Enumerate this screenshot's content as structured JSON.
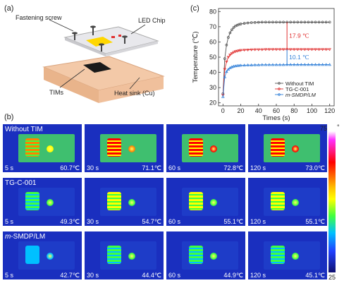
{
  "panel_a": {
    "label": "(a)",
    "annotations": {
      "screw": "Fastening screw",
      "chip": "LED Chip",
      "tims": "TIMs",
      "sink": "Heat sink (Cu)"
    }
  },
  "panel_b": {
    "label": "(b)",
    "colorbar": {
      "max": "75",
      "max_unit": "°",
      "min": "25"
    },
    "rows": [
      {
        "name": "Without TIM",
        "tiles": [
          {
            "time": "5 s",
            "temp": "60.7℃",
            "level": 0.72
          },
          {
            "time": "30 s",
            "temp": "71.1℃",
            "level": 0.92
          },
          {
            "time": "60 s",
            "temp": "72.8℃",
            "level": 0.95
          },
          {
            "time": "120 s",
            "temp": "73.0℃",
            "level": 0.96
          }
        ]
      },
      {
        "name": "TG-C-001",
        "tiles": [
          {
            "time": "5 s",
            "temp": "49.3℃",
            "level": 0.49
          },
          {
            "time": "30 s",
            "temp": "54.7℃",
            "level": 0.59
          },
          {
            "time": "60 s",
            "temp": "55.1℃",
            "level": 0.6
          },
          {
            "time": "120 s",
            "temp": "55.1℃",
            "level": 0.6
          }
        ]
      },
      {
        "name": "m-SMDP/LM",
        "name_italic": "m",
        "name_rest": "-SMDP/LM",
        "tiles": [
          {
            "time": "5 s",
            "temp": "42.7℃",
            "level": 0.35
          },
          {
            "time": "30 s",
            "temp": "44.4℃",
            "level": 0.39
          },
          {
            "time": "60 s",
            "temp": "44.9℃",
            "level": 0.4
          },
          {
            "time": "120 s",
            "temp": "45.1℃",
            "level": 0.4
          }
        ]
      }
    ]
  },
  "chart_data": {
    "panel_label": "(c)",
    "type": "line",
    "xlabel": "Times (s)",
    "ylabel": "Temperature (℃)",
    "xlim": [
      -5,
      125
    ],
    "ylim": [
      18,
      82
    ],
    "xticks": [
      0,
      20,
      40,
      60,
      80,
      100,
      120
    ],
    "yticks": [
      20,
      30,
      40,
      50,
      60,
      70,
      80
    ],
    "legend_position": "bottom-right",
    "series": [
      {
        "name": "Without TIM",
        "color": "#555555",
        "marker": "circle",
        "x": [
          0,
          2,
          4,
          6,
          8,
          10,
          12,
          14,
          16,
          18,
          20,
          24,
          28,
          32,
          36,
          40,
          44,
          48,
          52,
          56,
          60,
          64,
          68,
          72,
          76,
          80,
          84,
          88,
          92,
          96,
          100,
          104,
          108,
          112,
          116,
          120
        ],
        "y": [
          26,
          49,
          58,
          63,
          66,
          68,
          69.5,
          70.5,
          71,
          71.5,
          71.8,
          72.2,
          72.5,
          72.7,
          72.8,
          72.9,
          73,
          73,
          73,
          73,
          73,
          73,
          73,
          73,
          73,
          73,
          73,
          73,
          73,
          73,
          73,
          73,
          73,
          73,
          73,
          73
        ]
      },
      {
        "name": "TG-C-001",
        "color": "#e03030",
        "marker": "triangle-down",
        "x": [
          0,
          2,
          4,
          6,
          8,
          10,
          12,
          14,
          16,
          18,
          20,
          24,
          28,
          32,
          36,
          40,
          44,
          48,
          52,
          56,
          60,
          64,
          68,
          72,
          76,
          80,
          84,
          88,
          92,
          96,
          100,
          104,
          108,
          112,
          116,
          120
        ],
        "y": [
          25,
          42,
          47,
          50,
          51.5,
          52.5,
          53.2,
          53.7,
          54,
          54.3,
          54.5,
          54.7,
          54.8,
          54.9,
          55,
          55,
          55,
          55.1,
          55.1,
          55.1,
          55.1,
          55.1,
          55.1,
          55.1,
          55.1,
          55.1,
          55.1,
          55.1,
          55.1,
          55.1,
          55.1,
          55.1,
          55.1,
          55.1,
          55.1,
          55.1
        ]
      },
      {
        "name": "m-SMDP/LM",
        "color": "#2f7fd8",
        "marker": "triangle-up",
        "x": [
          0,
          2,
          4,
          6,
          8,
          10,
          12,
          14,
          16,
          18,
          20,
          24,
          28,
          32,
          36,
          40,
          44,
          48,
          52,
          56,
          60,
          64,
          68,
          72,
          76,
          80,
          84,
          88,
          92,
          96,
          100,
          104,
          108,
          112,
          116,
          120
        ],
        "y": [
          24,
          37,
          40.5,
          42,
          43,
          43.6,
          44,
          44.2,
          44.4,
          44.5,
          44.6,
          44.7,
          44.8,
          44.8,
          44.9,
          44.9,
          45,
          45,
          45,
          45,
          45,
          45,
          45,
          45.1,
          45.1,
          45.1,
          45.1,
          45.1,
          45.1,
          45.1,
          45.1,
          45.1,
          45.1,
          45.1,
          45.1,
          45.1
        ]
      }
    ],
    "annotations": [
      {
        "text": "17.9 ℃",
        "color": "#e03030",
        "x": 72,
        "y_from": 55.1,
        "y_to": 73
      },
      {
        "text": "10.1 ℃",
        "color": "#2f7fd8",
        "x": 72,
        "y_from": 45.1,
        "y_to": 55.1
      }
    ]
  }
}
